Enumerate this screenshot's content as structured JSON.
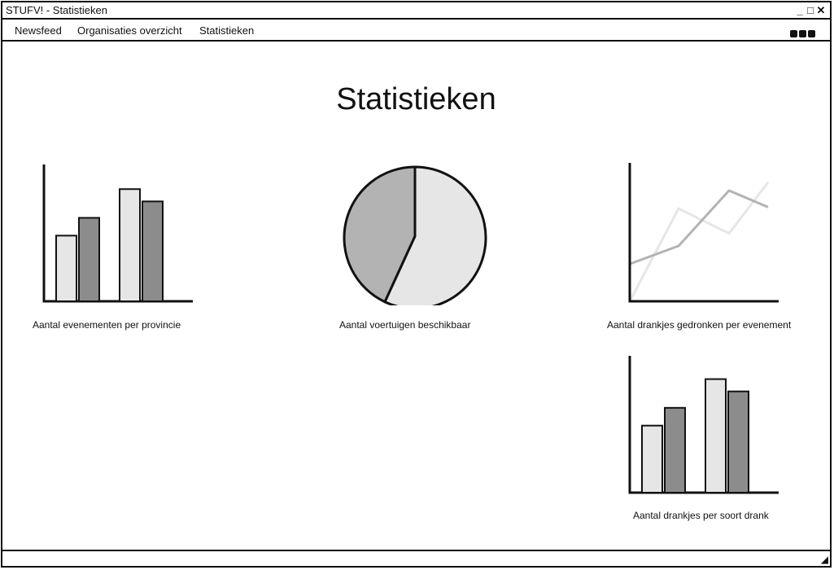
{
  "window": {
    "title": "STUFV! - Statistieken",
    "controls": [
      "minimize-icon",
      "maximize-icon",
      "close-icon"
    ]
  },
  "menu": {
    "items": [
      "Newsfeed",
      "Organisaties overzicht",
      "Statistieken"
    ],
    "more_icon": "ellipsis-icon"
  },
  "page": {
    "title": "Statistieken"
  },
  "colors": {
    "light": "#e6e6e6",
    "mid": "#b3b3b3",
    "dark": "#8c8c8c"
  },
  "chart_data": [
    {
      "type": "bar",
      "caption": "Aantal evenementen per provincie",
      "series": [
        {
          "values": [
            48,
            82
          ]
        },
        {
          "values": [
            61,
            73
          ]
        }
      ],
      "ylim": [
        0,
        100
      ]
    },
    {
      "type": "pie",
      "caption": "Aantal voertuigen beschikbaar",
      "values": [
        57,
        43
      ]
    },
    {
      "type": "line",
      "caption": "Aantal drankjes gedronken per evenement",
      "x": [
        0,
        1,
        2,
        3,
        4
      ],
      "series": [
        {
          "values": [
            0,
            67,
            49,
            86,
            null
          ]
        },
        {
          "values": [
            27,
            40,
            80,
            68,
            null
          ]
        }
      ],
      "ylim": [
        0,
        100
      ]
    },
    {
      "type": "bar",
      "caption": "Aantal drankjes per soort drank",
      "series": [
        {
          "values": [
            49,
            83
          ]
        },
        {
          "values": [
            62,
            74
          ]
        }
      ],
      "ylim": [
        0,
        100
      ]
    }
  ]
}
